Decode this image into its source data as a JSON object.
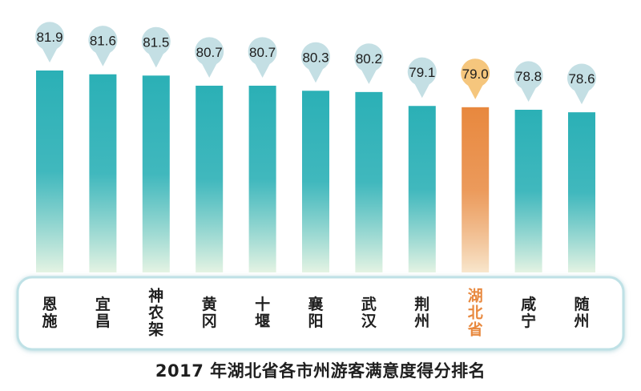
{
  "chart_data": {
    "type": "bar",
    "title": "2017 年湖北省各市州游客满意度得分排名",
    "categories": [
      "恩施",
      "宜昌",
      "神农架",
      "黄冈",
      "十堰",
      "襄阳",
      "武汉",
      "荆州",
      "湖北省",
      "咸宁",
      "随州"
    ],
    "values": [
      81.9,
      81.6,
      81.5,
      80.7,
      80.7,
      80.3,
      80.2,
      79.1,
      79.0,
      78.8,
      78.6
    ],
    "value_labels": [
      "81.9",
      "81.6",
      "81.5",
      "80.7",
      "80.7",
      "80.3",
      "80.2",
      "79.1",
      "79.0",
      "78.8",
      "78.6"
    ],
    "highlight_category": "湖北省",
    "colors": {
      "bar_top": "#2bb0b6",
      "bar_bottom": "#e4f3e3",
      "highlight_top": "#e8883e",
      "highlight_bottom": "#f8e6cc",
      "marker": "#c4dfe4",
      "highlight_marker": "#f5c67d",
      "label_text": "#1f1f1f",
      "highlight_label_text": "#e8893f",
      "panel_border": "#bfe1e6"
    }
  }
}
